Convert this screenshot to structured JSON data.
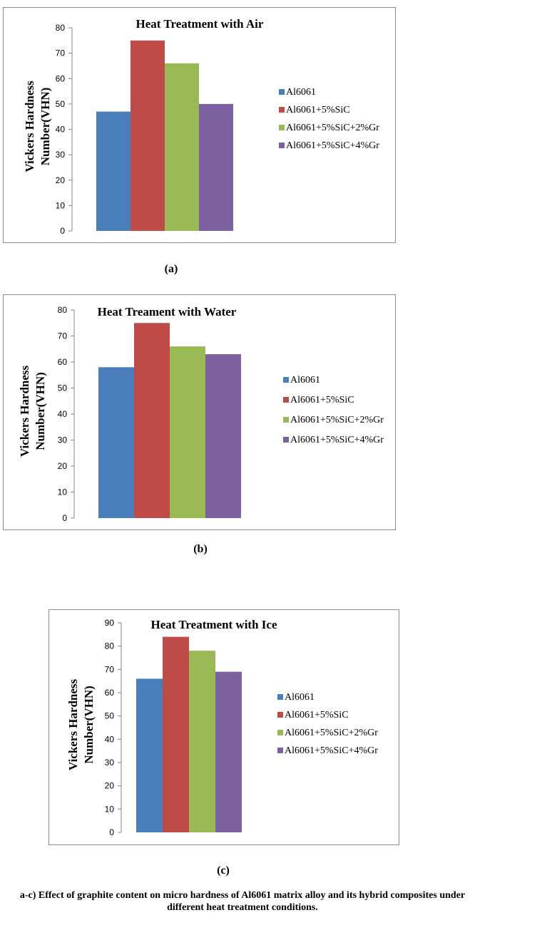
{
  "figure": {
    "panel_labels": [
      "(a)",
      "(b)",
      "(c)"
    ],
    "caption_line1": "a-c) Effect of graphite content on micro hardness of Al6061 matrix alloy and its hybrid composites under",
    "caption_line2": "different heat treatment conditions."
  },
  "colors": {
    "Al6061": "#4a7ebb",
    "Al6061+5%SiC": "#be4b48",
    "Al6061+5%SiC+2%Gr": "#98b954",
    "Al6061+5%SiC+4%Gr": "#7d60a0"
  },
  "chart_data": [
    {
      "type": "bar",
      "title": "Heat Treatment with Air",
      "xlabel": "",
      "ylabel_line1": "Vickers Hardness",
      "ylabel_line2": "Number(VHN)",
      "ylim": [
        0,
        80
      ],
      "yticks": [
        0,
        10,
        20,
        30,
        40,
        50,
        60,
        70,
        80
      ],
      "categories": [
        ""
      ],
      "legend_position": "right",
      "grid": false,
      "series": [
        {
          "name": "Al6061",
          "values": [
            47
          ]
        },
        {
          "name": "Al6061+5%SiC",
          "values": [
            75
          ]
        },
        {
          "name": "Al6061+5%SiC+2%Gr",
          "values": [
            66
          ]
        },
        {
          "name": "Al6061+5%SiC+4%Gr",
          "values": [
            50
          ]
        }
      ]
    },
    {
      "type": "bar",
      "title": "Heat Treament with Water",
      "xlabel": "",
      "ylabel_line1": "Vickers Hardness",
      "ylabel_line2": "Number(VHN)",
      "ylim": [
        0,
        80
      ],
      "yticks": [
        0,
        10,
        20,
        30,
        40,
        50,
        60,
        70,
        80
      ],
      "categories": [
        ""
      ],
      "legend_position": "right",
      "grid": false,
      "series": [
        {
          "name": "Al6061",
          "values": [
            58
          ]
        },
        {
          "name": "Al6061+5%SiC",
          "values": [
            75
          ]
        },
        {
          "name": "Al6061+5%SiC+2%Gr",
          "values": [
            66
          ]
        },
        {
          "name": "Al6061+5%SiC+4%Gr",
          "values": [
            63
          ]
        }
      ]
    },
    {
      "type": "bar",
      "title": "Heat Treatment with Ice",
      "xlabel": "",
      "ylabel_line1": "Vickers Hardness",
      "ylabel_line2": "Number(VHN)",
      "ylim": [
        0,
        90
      ],
      "yticks": [
        0,
        10,
        20,
        30,
        40,
        50,
        60,
        70,
        80,
        90
      ],
      "categories": [
        ""
      ],
      "legend_position": "right",
      "grid": false,
      "series": [
        {
          "name": "Al6061",
          "values": [
            66
          ]
        },
        {
          "name": "Al6061+5%SiC",
          "values": [
            84
          ]
        },
        {
          "name": "Al6061+5%SiC+2%Gr",
          "values": [
            78
          ]
        },
        {
          "name": "Al6061+5%SiC+4%Gr",
          "values": [
            69
          ]
        }
      ]
    }
  ]
}
